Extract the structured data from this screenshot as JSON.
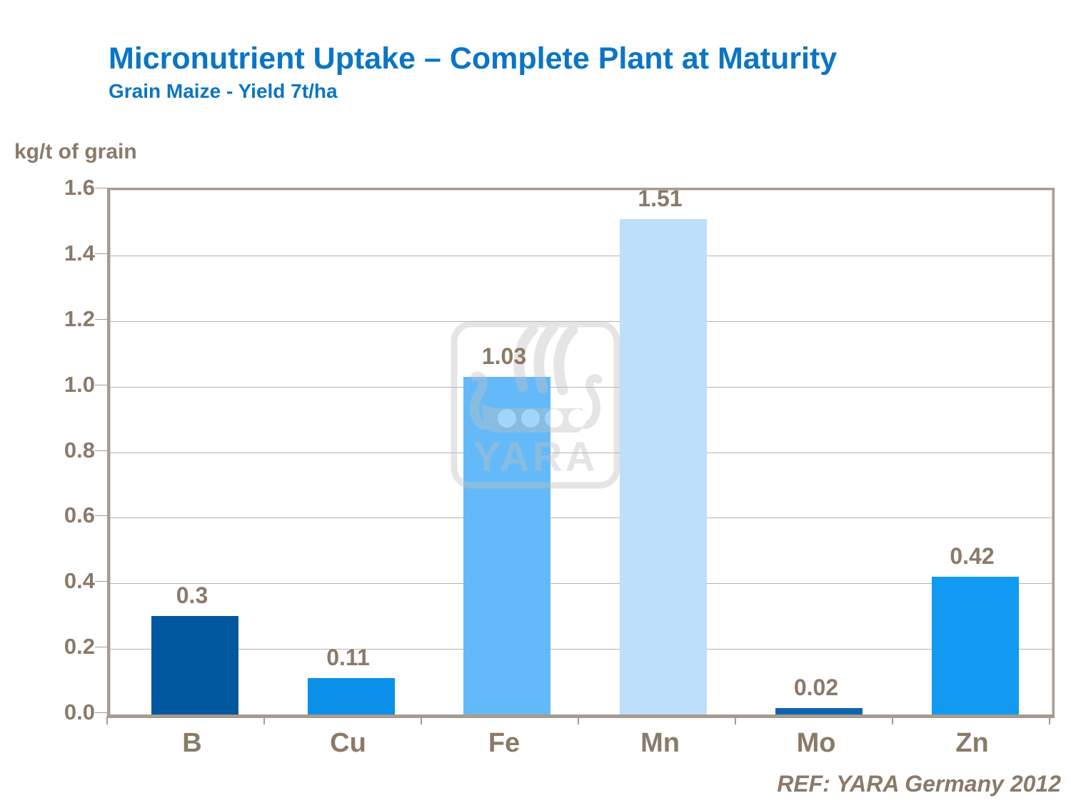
{
  "slide": {
    "title": "Micronutrient Uptake – Complete Plant at Maturity",
    "subtitle": "Grain Maize - Yield 7t/ha",
    "reference": "REF: YARA Germany 2012"
  },
  "colors": {
    "title_blue": "#0b75c5",
    "text_brown": "#8a7a68",
    "frame": "#a79b8f",
    "gridline": "#bcb1a5",
    "watermark_gray": "#c0c0c0"
  },
  "watermark": {
    "icon": "yara-viking-ship-logo",
    "text": "YARA"
  },
  "chart_data": {
    "type": "bar",
    "title": "Micronutrient Uptake – Complete Plant at Maturity",
    "subtitle": "Grain Maize - Yield 7t/ha",
    "xlabel": "",
    "ylabel": "kg/t of grain",
    "categories": [
      "B",
      "Cu",
      "Fe",
      "Mn",
      "Mo",
      "Zn"
    ],
    "values": [
      0.3,
      0.11,
      1.03,
      1.51,
      0.02,
      0.42
    ],
    "data_labels": [
      "0.3",
      "0.11",
      "1.03",
      "1.51",
      "0.02",
      "0.42"
    ],
    "bar_colors": [
      "#02589e",
      "#0a90e8",
      "#64baf8",
      "#bedffa",
      "#0e63b1",
      "#129af2"
    ],
    "ylim": [
      0,
      1.6
    ],
    "ytick_step": 0.2,
    "ytick_labels": [
      "0.0",
      "0.2",
      "0.4",
      "0.6",
      "0.8",
      "1.0",
      "1.2",
      "1.4",
      "1.6"
    ],
    "grid": true,
    "legend": false,
    "data_label_position": "above-bar"
  }
}
